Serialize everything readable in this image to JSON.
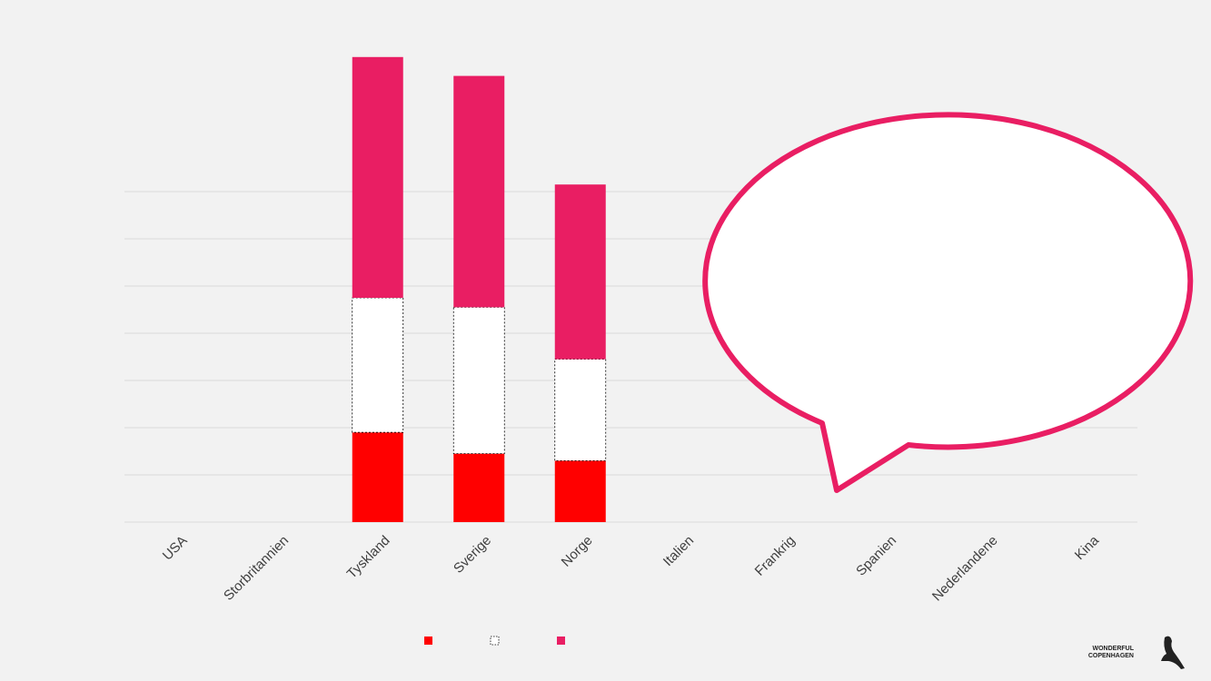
{
  "chart_data": {
    "type": "stacked-bar",
    "categories": [
      "USA",
      "Storbritannien",
      "Tyskland",
      "Sverige",
      "Norge",
      "Italien",
      "Frankrig",
      "Spanien",
      "Nederlandene",
      "Kina"
    ],
    "series": [
      {
        "color": "#ff0000",
        "values": [
          null,
          null,
          1.9,
          1.45,
          1.3,
          null,
          null,
          null,
          null,
          null
        ]
      },
      {
        "color": "#ffffff",
        "values": [
          null,
          null,
          2.85,
          3.1,
          2.15,
          null,
          null,
          null,
          null,
          null
        ]
      },
      {
        "color": "#e91e63",
        "values": [
          null,
          null,
          5.1,
          4.9,
          3.7,
          null,
          null,
          null,
          null,
          null
        ]
      }
    ],
    "ylim": [
      0,
      10
    ],
    "yticks": [
      0,
      1,
      2,
      3,
      4,
      5,
      6,
      7
    ],
    "grid": true
  },
  "logo": {
    "line1": "WONDERFUL",
    "line2": "COPENHAGEN"
  }
}
